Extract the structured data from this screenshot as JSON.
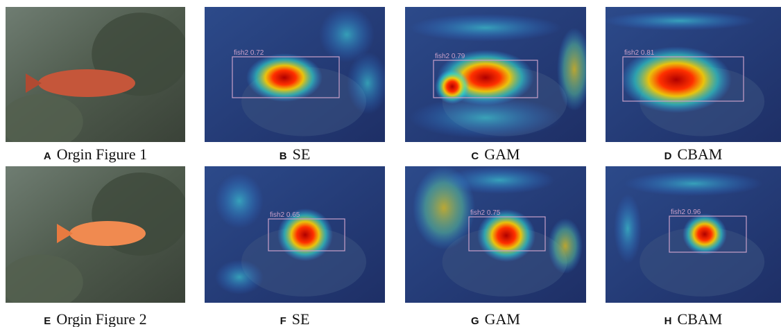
{
  "panels": [
    {
      "letter": "A",
      "caption": "Orgin Figure 1"
    },
    {
      "letter": "B",
      "caption": "SE",
      "detection": "fish2 0.72"
    },
    {
      "letter": "C",
      "caption": "GAM",
      "detection": "fish2 0.79"
    },
    {
      "letter": "D",
      "caption": "CBAM",
      "detection": "fish2 0.81"
    },
    {
      "letter": "E",
      "caption": "Orgin Figure 2"
    },
    {
      "letter": "F",
      "caption": "SE",
      "detection": "fish2 0.65"
    },
    {
      "letter": "G",
      "caption": "GAM",
      "detection": "fish2 0.75"
    },
    {
      "letter": "H",
      "caption": "CBAM",
      "detection": "fish2 0.96"
    }
  ]
}
